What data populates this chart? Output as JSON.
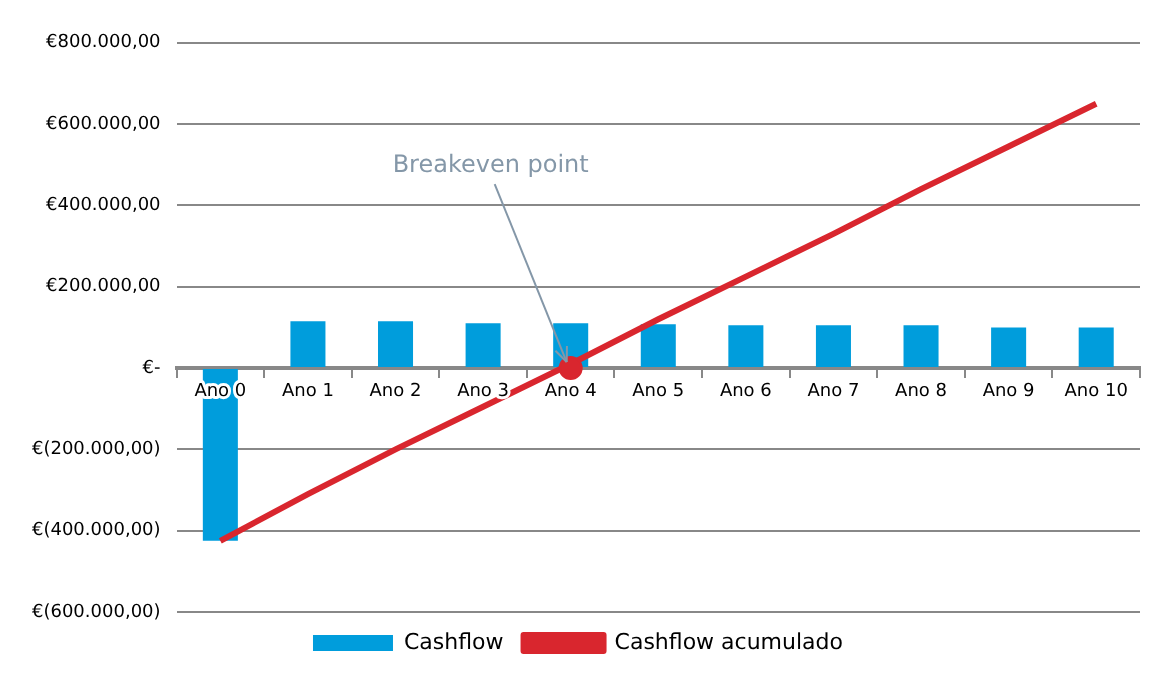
{
  "chart_data": {
    "type": "bar",
    "categories": [
      "Ano 0",
      "Ano 1",
      "Ano 2",
      "Ano 3",
      "Ano 4",
      "Ano 5",
      "Ano 6",
      "Ano 7",
      "Ano 8",
      "Ano 9",
      "Ano 10"
    ],
    "series": [
      {
        "name": "Cashflow",
        "color": "#009ddc",
        "values": [
          -425000,
          115000,
          115000,
          110000,
          110000,
          108000,
          105000,
          105000,
          105000,
          100000,
          100000
        ]
      },
      {
        "name": "Cashflow acumulado",
        "type": "line",
        "marker": "none",
        "color": "#d9262e",
        "values": [
          -425000,
          -310000,
          -200000,
          -95000,
          10000,
          120000,
          225000,
          330000,
          440000,
          545000,
          650000
        ]
      },
      {
        "type": "scatter",
        "marker": "circle",
        "color": "#d9262e",
        "x": [
          "Ano 4"
        ],
        "values": [
          0
        ]
      }
    ],
    "ylim": [
      -600000,
      800000
    ],
    "yticks": [
      {
        "value": -600000,
        "label": "€(600.000,00)"
      },
      {
        "value": -400000,
        "label": "€(400.000,00)"
      },
      {
        "value": -200000,
        "label": "€(200.000,00)"
      },
      {
        "value": 0,
        "label": "€-"
      },
      {
        "value": 200000,
        "label": "€200.000,00"
      },
      {
        "value": 400000,
        "label": "€400.000,00"
      },
      {
        "value": 600000,
        "label": "€600.000,00"
      },
      {
        "value": 800000,
        "label": "€800.000,00"
      }
    ],
    "annotations": [
      {
        "text": "Breakeven point",
        "x": "Ano 4",
        "y": 0
      }
    ],
    "grid": "y",
    "legend": "bottom"
  }
}
